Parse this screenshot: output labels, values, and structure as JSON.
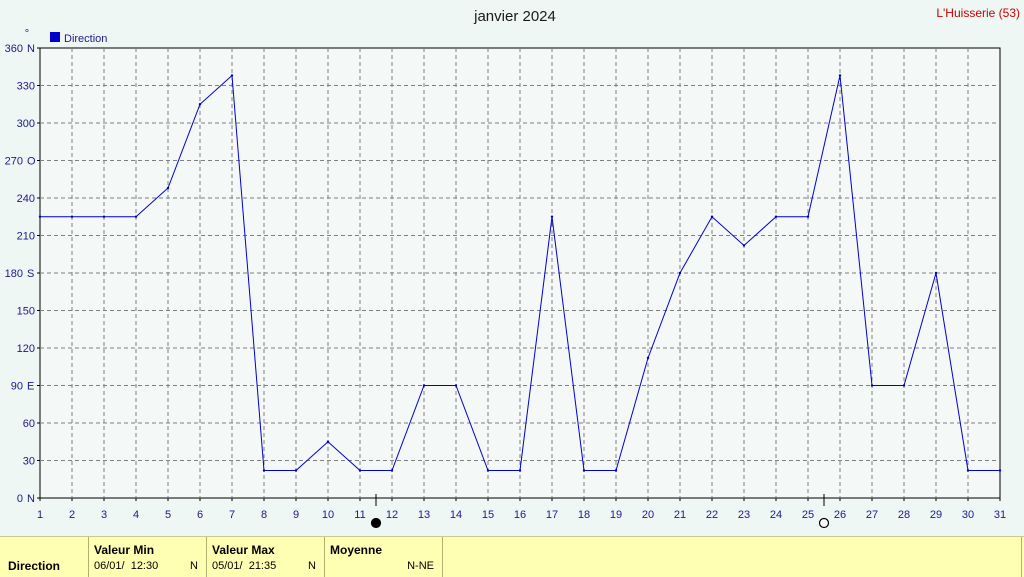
{
  "chart_data": {
    "type": "line",
    "title": "janvier 2024",
    "location": "L'Huisserie (53)",
    "unit": "°",
    "series": [
      {
        "name": "Direction",
        "color": "#0000cc",
        "x": [
          1,
          2,
          3,
          4,
          5,
          6,
          7,
          8,
          9,
          10,
          11,
          12,
          13,
          14,
          15,
          16,
          17,
          18,
          19,
          20,
          21,
          22,
          23,
          24,
          25,
          26,
          27,
          28,
          29,
          30,
          31
        ],
        "values": [
          225,
          225,
          225,
          225,
          248,
          315,
          338,
          22,
          22,
          45,
          22,
          22,
          90,
          90,
          22,
          22,
          225,
          22,
          22,
          112,
          180,
          225,
          202,
          225,
          225,
          338,
          90,
          90,
          180,
          22,
          22
        ]
      }
    ],
    "x_ticks": [
      "1",
      "2",
      "3",
      "4",
      "5",
      "6",
      "7",
      "8",
      "9",
      "10",
      "11",
      "12",
      "13",
      "14",
      "15",
      "16",
      "17",
      "18",
      "19",
      "20",
      "21",
      "22",
      "23",
      "24",
      "25",
      "26",
      "27",
      "28",
      "29",
      "30",
      "31"
    ],
    "y_ticks": [
      {
        "value": 0,
        "label": "0",
        "dir": "N"
      },
      {
        "value": 30,
        "label": "30",
        "dir": ""
      },
      {
        "value": 60,
        "label": "60",
        "dir": ""
      },
      {
        "value": 90,
        "label": "90",
        "dir": "E"
      },
      {
        "value": 120,
        "label": "120",
        "dir": ""
      },
      {
        "value": 150,
        "label": "150",
        "dir": ""
      },
      {
        "value": 180,
        "label": "180",
        "dir": "S"
      },
      {
        "value": 210,
        "label": "210",
        "dir": ""
      },
      {
        "value": 240,
        "label": "240",
        "dir": ""
      },
      {
        "value": 270,
        "label": "270",
        "dir": "O"
      },
      {
        "value": 300,
        "label": "300",
        "dir": ""
      },
      {
        "value": 330,
        "label": "330",
        "dir": ""
      },
      {
        "value": 360,
        "label": "360",
        "dir": "N"
      }
    ],
    "xlim": [
      1,
      31
    ],
    "ylim": [
      0,
      360
    ],
    "grid": true,
    "legend_position": "top-left",
    "moon_markers": [
      {
        "day": 11.5,
        "phase": "new-moon"
      },
      {
        "day": 25.5,
        "phase": "full-moon"
      }
    ]
  },
  "footer": {
    "series_label": "Direction",
    "min_label": "Valeur Min",
    "min_date": "06/01/  12:30",
    "min_dir": "N",
    "max_label": "Valeur Max",
    "max_date": "05/01/  21:35",
    "max_dir": "N",
    "mean_label": "Moyenne",
    "mean_value": "N-NE"
  }
}
